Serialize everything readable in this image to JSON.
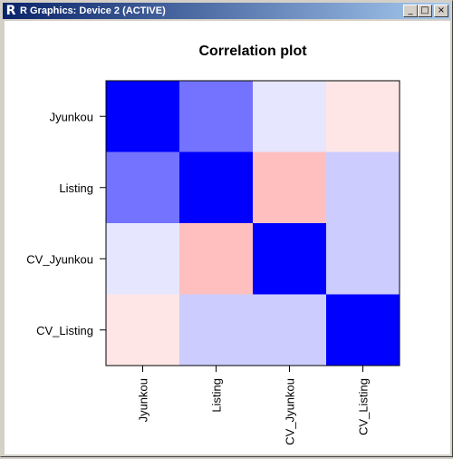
{
  "window": {
    "title": "R Graphics: Device 2 (ACTIVE)",
    "app_icon": "R",
    "controls": {
      "minimize": "_",
      "maximize": "□",
      "close": "×"
    }
  },
  "chart_data": {
    "type": "heatmap",
    "title": "Correlation plot",
    "xlabel": "",
    "ylabel": "",
    "row_labels": [
      "Jyunkou",
      "Listing",
      "CV_Jyunkou",
      "CV_Listing"
    ],
    "col_labels": [
      "Jyunkou",
      "Listing",
      "CV_Jyunkou",
      "CV_Listing"
    ],
    "values": [
      [
        1.0,
        0.55,
        0.1,
        -0.1
      ],
      [
        0.55,
        1.0,
        -0.25,
        0.2
      ],
      [
        0.1,
        -0.25,
        1.0,
        0.2
      ],
      [
        -0.1,
        0.2,
        0.2,
        1.0
      ]
    ],
    "color_scale": {
      "negative": "#ff0000",
      "zero": "#ffffff",
      "positive": "#0000ff"
    },
    "legend": "none",
    "grid": false
  }
}
